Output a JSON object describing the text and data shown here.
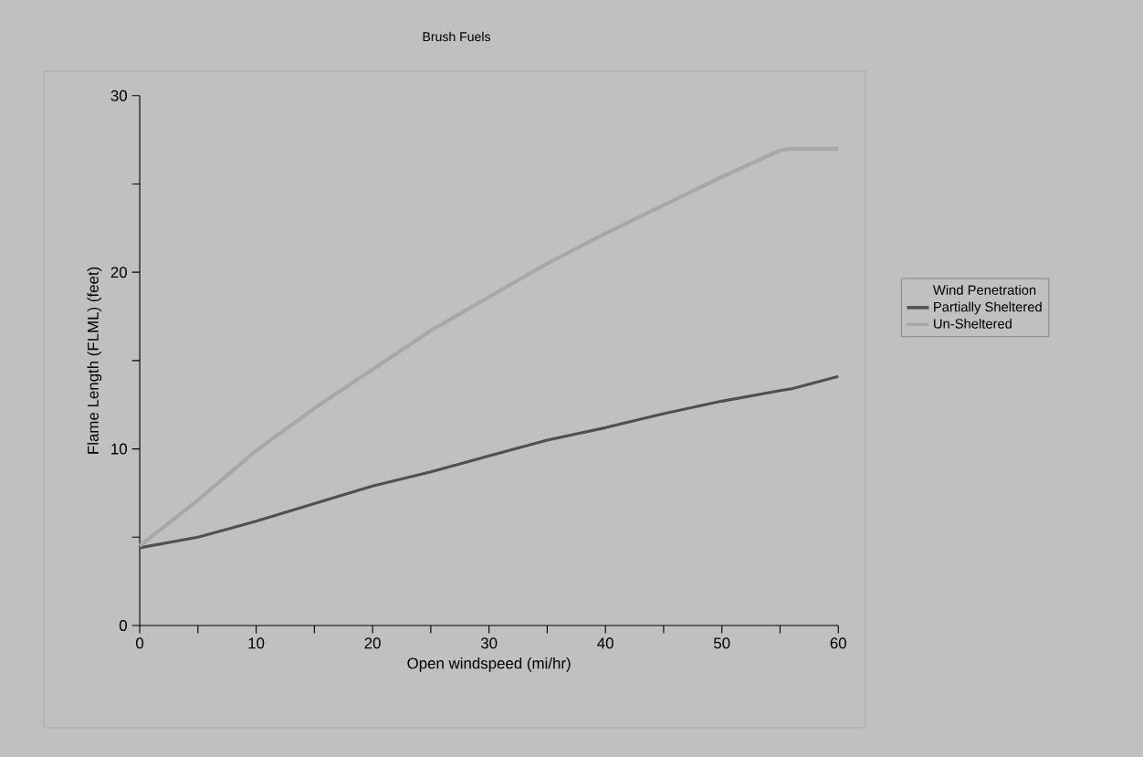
{
  "chart_data": {
    "type": "line",
    "title": "Brush Fuels",
    "xlabel": "Open windspeed (mi/hr)",
    "ylabel": "Flame Length (FLML) (feet)",
    "legend_title": "Wind Penetration",
    "legend": "right",
    "x": [
      0,
      5,
      10,
      15,
      20,
      25,
      30,
      35,
      40,
      45,
      50,
      55,
      56,
      60
    ],
    "series": [
      {
        "name": "Partially Sheltered",
        "color": "#505050",
        "values": [
          4.4,
          5.0,
          5.9,
          6.9,
          7.9,
          8.7,
          9.6,
          10.5,
          11.2,
          12.0,
          12.7,
          13.3,
          13.4,
          14.1
        ]
      },
      {
        "name": "Un-Sheltered",
        "color": "#a8a8a8",
        "values": [
          4.5,
          7.1,
          9.9,
          12.3,
          14.5,
          16.7,
          18.6,
          20.5,
          22.2,
          23.8,
          25.4,
          26.9,
          27.0,
          27.0
        ]
      }
    ],
    "xlim": [
      0,
      60
    ],
    "ylim": [
      0,
      30
    ],
    "xticks": [
      0,
      10,
      20,
      30,
      40,
      50,
      60
    ],
    "yticks": [
      0,
      10,
      20,
      30
    ],
    "marker": "none",
    "line_style": "solid"
  }
}
